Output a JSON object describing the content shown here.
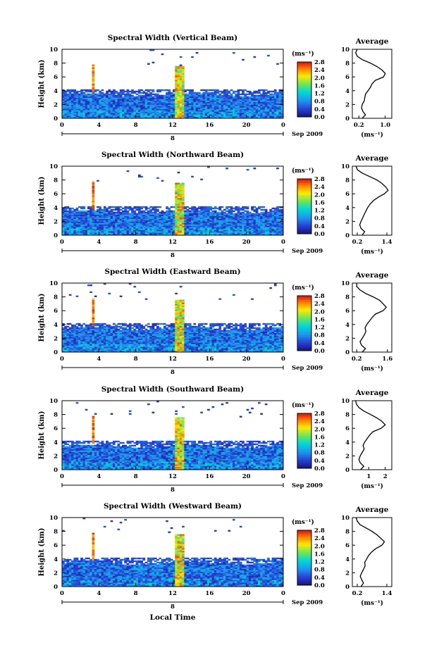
{
  "figure": {
    "x_label": "Local Time",
    "date_label": "Sep 2009",
    "day_label": "8",
    "y_label": "Height (km)",
    "colorbar_unit": "(ms⁻¹)",
    "profile_title": "Average",
    "profile_unit": "(ms⁻¹)"
  },
  "chart_data": [
    {
      "type": "heatmap",
      "title": "Spectral Width (Vertical Beam)",
      "xlabel": "",
      "ylabel": "Height (km)",
      "xlim": [
        0,
        24
      ],
      "ylim": [
        0,
        10
      ],
      "x_ticks": [
        "0",
        "4",
        "8",
        "12",
        "16",
        "20",
        "0"
      ],
      "y_ticks": [
        "0",
        "2",
        "4",
        "6",
        "8",
        "10"
      ],
      "colorbar": {
        "unit": "(ms⁻¹)",
        "ticks": [
          "0.0",
          "0.4",
          "0.8",
          "1.2",
          "1.6",
          "2.0",
          "2.4",
          "2.8"
        ],
        "range": [
          0,
          2.8
        ]
      },
      "profile": {
        "title": "Average",
        "xlabel": "(ms⁻¹)",
        "x_ticks": [
          "0.2",
          "1.0"
        ],
        "xlim": [
          0,
          1.2
        ],
        "ylim": [
          0,
          10
        ],
        "heights": [
          0,
          0.5,
          1,
          1.5,
          2,
          2.5,
          3,
          3.5,
          4,
          4.5,
          5,
          5.5,
          6,
          6.5,
          7,
          7.5,
          8,
          8.5,
          9,
          9.5,
          10
        ],
        "values": [
          0.3,
          0.4,
          0.32,
          0.28,
          0.3,
          0.36,
          0.38,
          0.4,
          0.48,
          0.55,
          0.6,
          0.7,
          0.95,
          1.0,
          0.9,
          0.75,
          0.55,
          0.3,
          0.15,
          0.1,
          0.15
        ]
      }
    },
    {
      "type": "heatmap",
      "title": "Spectral Width (Northward Beam)",
      "xlabel": "",
      "ylabel": "Height (km)",
      "xlim": [
        0,
        24
      ],
      "ylim": [
        0,
        10
      ],
      "x_ticks": [
        "0",
        "4",
        "8",
        "12",
        "16",
        "20",
        "0"
      ],
      "y_ticks": [
        "0",
        "2",
        "4",
        "6",
        "8",
        "10"
      ],
      "colorbar": {
        "unit": "(ms⁻¹)",
        "ticks": [
          "0.0",
          "0.4",
          "0.8",
          "1.2",
          "1.6",
          "2.0",
          "2.4",
          "2.8"
        ],
        "range": [
          0,
          2.8
        ]
      },
      "profile": {
        "title": "Average",
        "xlabel": "(ms⁻¹)",
        "x_ticks": [
          "0.2",
          "1.4"
        ],
        "xlim": [
          0,
          1.6
        ],
        "ylim": [
          0,
          10
        ],
        "heights": [
          0,
          0.5,
          1,
          1.5,
          2,
          2.5,
          3,
          3.5,
          4,
          4.5,
          5,
          5.5,
          6,
          6.5,
          7,
          7.5,
          8,
          8.5,
          9,
          9.5,
          10
        ],
        "values": [
          0.4,
          0.5,
          0.35,
          0.3,
          0.35,
          0.42,
          0.48,
          0.55,
          0.62,
          0.72,
          0.85,
          1.05,
          1.3,
          1.45,
          1.35,
          1.2,
          1.0,
          0.7,
          0.4,
          0.2,
          0.15
        ]
      }
    },
    {
      "type": "heatmap",
      "title": "Spectral Width (Eastward Beam)",
      "xlabel": "",
      "ylabel": "Height (km)",
      "xlim": [
        0,
        24
      ],
      "ylim": [
        0,
        10
      ],
      "x_ticks": [
        "0",
        "4",
        "8",
        "12",
        "16",
        "20",
        "0"
      ],
      "y_ticks": [
        "0",
        "2",
        "4",
        "6",
        "8",
        "10"
      ],
      "colorbar": {
        "unit": "(ms⁻¹)",
        "ticks": [
          "0.0",
          "0.4",
          "0.8",
          "1.2",
          "1.6",
          "2.0",
          "2.4",
          "2.8"
        ],
        "range": [
          0,
          2.8
        ]
      },
      "profile": {
        "title": "Average",
        "xlabel": "(ms⁻¹)",
        "x_ticks": [
          "0.2",
          "1.6"
        ],
        "xlim": [
          0,
          1.8
        ],
        "ylim": [
          0,
          10
        ],
        "heights": [
          0,
          0.5,
          1,
          1.5,
          2,
          2.5,
          3,
          3.5,
          4,
          4.5,
          5,
          5.5,
          6,
          6.5,
          7,
          7.5,
          8,
          8.5,
          9,
          9.5,
          10
        ],
        "values": [
          0.45,
          0.6,
          0.42,
          0.35,
          0.45,
          0.55,
          0.62,
          0.58,
          0.66,
          0.78,
          0.9,
          1.05,
          1.4,
          1.55,
          1.4,
          1.25,
          0.95,
          0.6,
          0.35,
          0.2,
          0.2
        ]
      }
    },
    {
      "type": "heatmap",
      "title": "Spectral Width (Southward Beam)",
      "xlabel": "",
      "ylabel": "Height (km)",
      "xlim": [
        0,
        24
      ],
      "ylim": [
        0,
        10
      ],
      "x_ticks": [
        "0",
        "4",
        "8",
        "12",
        "16",
        "20",
        "0"
      ],
      "y_ticks": [
        "0",
        "2",
        "4",
        "6",
        "8",
        "10"
      ],
      "colorbar": {
        "unit": "(ms⁻¹)",
        "ticks": [
          "0.0",
          "0.4",
          "0.8",
          "1.2",
          "1.6",
          "2.0",
          "2.4",
          "2.8"
        ],
        "range": [
          0,
          2.8
        ]
      },
      "profile": {
        "title": "Average",
        "xlabel": "(ms⁻¹)",
        "x_ticks": [
          "1",
          "2"
        ],
        "xlim": [
          0,
          2.4
        ],
        "ylim": [
          0,
          10
        ],
        "heights": [
          0,
          0.5,
          1,
          1.5,
          2,
          2.5,
          3,
          3.5,
          4,
          4.5,
          5,
          5.5,
          6,
          6.5,
          7,
          7.5,
          8,
          8.5,
          9,
          9.5,
          10
        ],
        "values": [
          0.5,
          0.7,
          0.48,
          0.4,
          0.48,
          0.6,
          0.72,
          0.65,
          0.75,
          0.9,
          1.05,
          1.25,
          1.75,
          2.0,
          1.8,
          1.5,
          1.1,
          0.7,
          0.4,
          0.25,
          0.2
        ]
      }
    },
    {
      "type": "heatmap",
      "title": "Spectral Width (Westward Beam)",
      "xlabel": "Local Time",
      "ylabel": "Height (km)",
      "xlim": [
        0,
        24
      ],
      "ylim": [
        0,
        10
      ],
      "x_ticks": [
        "0",
        "4",
        "8",
        "12",
        "16",
        "20",
        "0"
      ],
      "y_ticks": [
        "0",
        "2",
        "4",
        "6",
        "8",
        "10"
      ],
      "colorbar": {
        "unit": "(ms⁻¹)",
        "ticks": [
          "0.0",
          "0.4",
          "0.8",
          "1.2",
          "1.6",
          "2.0",
          "2.4",
          "2.8"
        ],
        "range": [
          0,
          2.8
        ]
      },
      "profile": {
        "title": "Average",
        "xlabel": "(ms⁻¹)",
        "x_ticks": [
          "0.2",
          "1.4"
        ],
        "xlim": [
          0,
          1.6
        ],
        "ylim": [
          0,
          10
        ],
        "heights": [
          0,
          0.5,
          1,
          1.5,
          2,
          2.5,
          3,
          3.5,
          4,
          4.5,
          5,
          5.5,
          6,
          6.5,
          7,
          7.5,
          8,
          8.5,
          9,
          9.5,
          10
        ],
        "values": [
          0.35,
          0.45,
          0.38,
          0.32,
          0.38,
          0.45,
          0.52,
          0.5,
          0.58,
          0.66,
          0.78,
          0.95,
          1.2,
          1.3,
          1.15,
          1.0,
          0.8,
          0.55,
          0.3,
          0.2,
          0.15
        ]
      }
    }
  ]
}
